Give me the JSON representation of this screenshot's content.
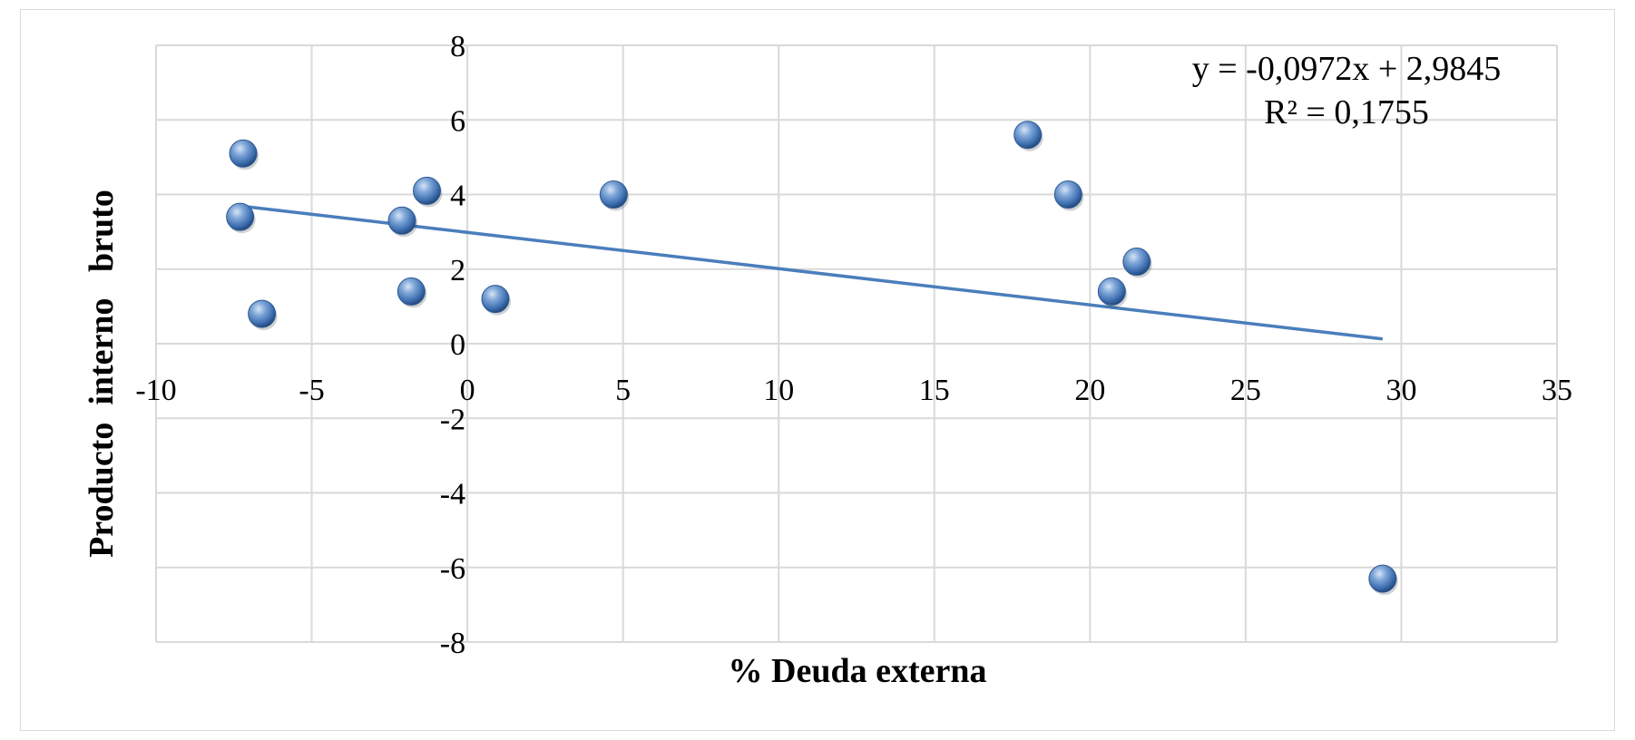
{
  "chart_data": {
    "type": "scatter",
    "xlabel": "% Deuda externa",
    "ylabel": "Producto  interno   bruto",
    "xlim": [
      -10,
      35
    ],
    "ylim": [
      -8,
      8
    ],
    "x_ticks": [
      -10,
      -5,
      0,
      5,
      10,
      15,
      20,
      25,
      30,
      35
    ],
    "y_ticks": [
      -8,
      -6,
      -4,
      -2,
      0,
      2,
      4,
      6,
      8
    ],
    "grid": true,
    "legend": "none",
    "point_color": "#4f81bd",
    "trendline_color": "#4a7ebb",
    "points": [
      {
        "x": -7.2,
        "y": 5.1
      },
      {
        "x": -7.3,
        "y": 3.4
      },
      {
        "x": -6.6,
        "y": 0.8
      },
      {
        "x": -2.1,
        "y": 3.3
      },
      {
        "x": -1.8,
        "y": 1.4
      },
      {
        "x": -1.3,
        "y": 4.1
      },
      {
        "x": 0.9,
        "y": 1.2
      },
      {
        "x": 4.7,
        "y": 4.0
      },
      {
        "x": 18.0,
        "y": 5.6
      },
      {
        "x": 19.3,
        "y": 4.0
      },
      {
        "x": 20.7,
        "y": 1.4
      },
      {
        "x": 21.5,
        "y": 2.2
      },
      {
        "x": 29.4,
        "y": -6.3
      }
    ],
    "trendline": {
      "slope": -0.0972,
      "intercept": 2.9845,
      "x_range": [
        -7.3,
        29.4
      ],
      "equation": "y = -0,0972x + 2,9845",
      "r_squared": "R² = 0,1755"
    }
  }
}
